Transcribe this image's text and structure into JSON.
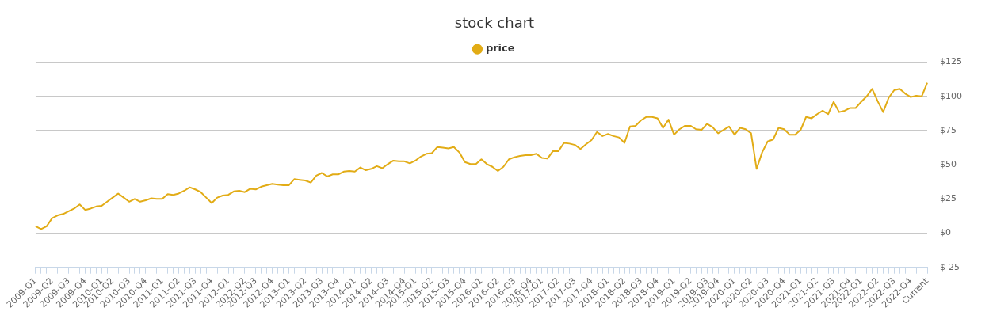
{
  "chart_data": {
    "type": "line",
    "title": "stock chart",
    "categories": [
      "2009-Q1",
      null,
      null,
      "2009-Q2",
      null,
      null,
      "2009-Q3",
      null,
      null,
      "2009-Q4",
      null,
      null,
      "2010-Q1",
      null,
      "2010-Q2",
      null,
      null,
      "2010-Q3",
      null,
      null,
      "2010-Q4",
      null,
      null,
      "2011-Q1",
      null,
      null,
      "2011-Q2",
      null,
      null,
      "2011-Q3",
      null,
      null,
      "2011-Q4",
      null,
      null,
      "2012-Q1",
      null,
      null,
      "2012-Q2",
      null,
      "2012-Q3",
      null,
      null,
      "2012-Q4",
      null,
      null,
      "2013-Q1",
      null,
      null,
      "2013-Q2",
      null,
      null,
      "2013-Q3",
      null,
      null,
      "2013-Q4",
      null,
      null,
      "2014-Q1",
      null,
      null,
      "2014-Q2",
      null,
      null,
      "2014-Q3",
      null,
      null,
      "2014-Q4",
      null,
      "2015-Q1",
      null,
      null,
      "2015-Q2",
      null,
      null,
      "2015-Q3",
      null,
      null,
      "2015-Q4",
      null,
      null,
      "2016-Q1",
      null,
      null,
      "2016-Q2",
      null,
      null,
      "2016-Q3",
      null,
      null,
      "2016-Q4",
      null,
      "2017-Q1",
      null,
      null,
      "2017-Q2",
      null,
      null,
      "2017-Q3",
      null,
      null,
      "2017-Q4",
      null,
      null,
      "2018-Q1",
      null,
      null,
      "2018-Q2",
      null,
      null,
      "2018-Q3",
      null,
      null,
      "2018-Q4",
      null,
      null,
      "2019-Q1",
      null,
      null,
      "2019-Q2",
      null,
      null,
      "2019-Q3",
      null,
      "2019-Q4",
      null,
      null,
      "2020-Q1",
      null,
      null,
      "2020-Q2",
      null,
      null,
      "2020-Q3",
      null,
      null,
      "2020-Q4",
      null,
      null,
      "2021-Q1",
      null,
      null,
      "2021-Q2",
      null,
      null,
      "2021-Q3",
      null,
      null,
      "2021-Q4",
      null,
      "2022-Q1",
      null,
      null,
      "2022-Q2",
      null,
      null,
      "2022-Q3",
      null,
      null,
      "2022-Q4",
      null,
      null,
      "Current"
    ],
    "series": [
      {
        "name": "price",
        "color": "#e2ac16",
        "values": [
          5,
          3,
          5,
          11,
          13,
          14,
          16,
          18,
          21,
          17,
          18,
          19.5,
          20,
          23,
          26,
          29,
          26,
          23,
          25,
          23,
          24,
          25.5,
          25,
          25,
          28.5,
          28,
          29,
          31,
          33.5,
          32,
          30,
          26,
          22,
          26,
          27.5,
          28,
          30.5,
          31,
          30,
          32.5,
          32,
          34,
          35,
          36,
          35.5,
          35,
          35,
          39.5,
          39,
          38.5,
          37,
          42,
          44,
          41.5,
          43,
          43,
          45,
          45.5,
          45,
          48,
          46,
          47,
          49,
          47.5,
          50.5,
          53,
          52.5,
          52.5,
          51,
          53,
          56,
          58,
          58.5,
          63,
          62.5,
          62,
          63,
          59,
          52,
          50.5,
          50.5,
          54,
          50.5,
          48.5,
          45.5,
          48.5,
          54,
          55.5,
          56.5,
          57,
          57,
          58,
          55,
          54.5,
          60,
          60,
          66,
          65.5,
          64.5,
          61.5,
          65,
          68,
          74,
          71,
          72.5,
          71,
          70,
          66,
          78,
          78.5,
          82.5,
          85,
          85,
          84,
          77,
          83,
          72,
          76,
          78.5,
          78.5,
          76,
          75.5,
          80,
          77.5,
          73,
          75.5,
          78,
          72,
          77,
          76,
          73,
          47,
          59,
          67,
          68.5,
          77,
          76,
          72,
          72,
          75.5,
          85,
          84,
          87,
          89.5,
          87,
          96,
          88.5,
          89.5,
          91.5,
          91.5,
          96,
          100,
          105.5,
          96.5,
          88.5,
          99,
          104.5,
          105.5,
          102,
          99.5,
          100.5,
          100,
          110
        ]
      }
    ],
    "ylim": [
      -25,
      125
    ],
    "yticks": [
      {
        "value": -25,
        "label": "$-25"
      },
      {
        "value": 0,
        "label": "$0"
      },
      {
        "value": 25,
        "label": "$25"
      },
      {
        "value": 50,
        "label": "$50"
      },
      {
        "value": 75,
        "label": "$75"
      },
      {
        "value": 100,
        "label": "$100"
      },
      {
        "value": 125,
        "label": "$125"
      }
    ],
    "grid": "y",
    "legend": "top",
    "marker": "none",
    "line_style": "solid"
  }
}
